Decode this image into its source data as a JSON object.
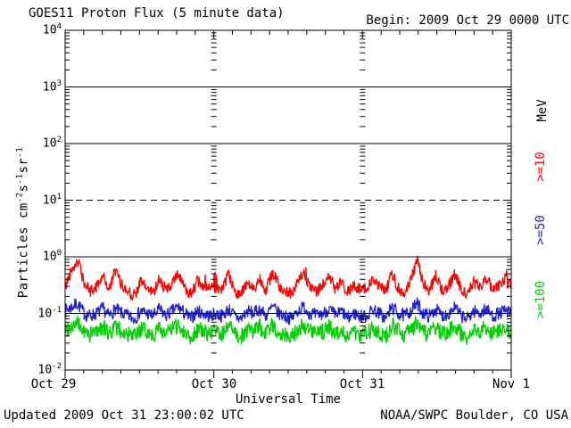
{
  "header": {
    "title": "GOES11 Proton Flux (5 minute data)",
    "begin_label": "Begin: 2009 Oct 29 0000 UTC"
  },
  "footer": {
    "updated": "Updated 2009 Oct 31 23:00:02 UTC",
    "source": "NOAA/SWPC Boulder, CO USA"
  },
  "colors": {
    "p10": "#ff0000",
    "p50": "#2222cc",
    "p100": "#00d000",
    "axis": "#000000",
    "background": "#ffffff"
  },
  "y_axis": {
    "unit_parts": [
      {
        "text": "Particles  cm"
      },
      {
        "sup": "-2"
      },
      {
        "text": "s"
      },
      {
        "sup": "-1"
      },
      {
        "text": "sr"
      },
      {
        "sup": "-1"
      }
    ],
    "ticks": [
      {
        "base": "10",
        "exp": "4"
      },
      {
        "base": "10",
        "exp": "3"
      },
      {
        "base": "10",
        "exp": "2"
      },
      {
        "base": "10",
        "exp": "1"
      },
      {
        "base": "10",
        "exp": "0"
      },
      {
        "base": "10",
        "exp": "-1"
      },
      {
        "base": "10",
        "exp": "-2"
      }
    ]
  },
  "x_axis": {
    "title": "Universal Time",
    "tick_labels": [
      "Oct 29",
      "Oct 30",
      "Oct 31",
      "Nov 1"
    ]
  },
  "right_labels": {
    "unit": "MeV",
    "series": [
      {
        "label": ">=10",
        "color": "#ff0000"
      },
      {
        "label": ">=50",
        "color": "#2222cc"
      },
      {
        "label": ">=100",
        "color": "#00d000"
      }
    ]
  },
  "chart_data": {
    "type": "line",
    "title": "GOES11 Proton Flux (5 minute data)",
    "xlabel": "Universal Time",
    "ylabel": "Particles cm-2 s-1 sr-1",
    "y_scale": "log",
    "ylim": [
      0.01,
      10000
    ],
    "x_start": "2009 Oct 29 0000 UTC",
    "x_end": "2009 Nov 1 0000 UTC",
    "x_days": 3,
    "samples_per_hour": 12,
    "x_tick_labels": [
      "Oct 29",
      "Oct 30",
      "Oct 31",
      "Nov 1"
    ],
    "gridlines": {
      "solid_at": [
        1000,
        100,
        1,
        0.1
      ],
      "dashed_at": [
        10
      ],
      "legend_position": "right"
    },
    "series": [
      {
        "name": ">=10 MeV",
        "color": "#ff0000",
        "noise_decades": 0.11,
        "approx_hourly_flux": [
          0.28,
          0.62,
          0.85,
          0.35,
          0.24,
          0.3,
          0.48,
          0.26,
          0.58,
          0.32,
          0.24,
          0.21,
          0.36,
          0.28,
          0.23,
          0.42,
          0.26,
          0.32,
          0.52,
          0.28,
          0.23,
          0.36,
          0.3,
          0.26,
          0.3,
          0.26,
          0.46,
          0.25,
          0.22,
          0.33,
          0.28,
          0.42,
          0.26,
          0.56,
          0.31,
          0.25,
          0.22,
          0.36,
          0.5,
          0.28,
          0.24,
          0.31,
          0.45,
          0.26,
          0.35,
          0.24,
          0.3,
          0.27,
          0.27,
          0.42,
          0.31,
          0.24,
          0.52,
          0.28,
          0.23,
          0.36,
          0.92,
          0.32,
          0.26,
          0.46,
          0.25,
          0.31,
          0.5,
          0.27,
          0.23,
          0.36,
          0.29,
          0.44,
          0.25,
          0.31,
          0.4,
          0.28
        ]
      },
      {
        "name": ">=50 MeV",
        "color": "#2222cc",
        "noise_decades": 0.12,
        "approx_hourly_flux": [
          0.11,
          0.13,
          0.15,
          0.1,
          0.09,
          0.1,
          0.12,
          0.09,
          0.12,
          0.1,
          0.09,
          0.08,
          0.11,
          0.1,
          0.09,
          0.12,
          0.09,
          0.11,
          0.13,
          0.1,
          0.08,
          0.11,
          0.1,
          0.09,
          0.1,
          0.09,
          0.12,
          0.09,
          0.08,
          0.11,
          0.1,
          0.12,
          0.09,
          0.13,
          0.1,
          0.09,
          0.08,
          0.11,
          0.13,
          0.1,
          0.09,
          0.1,
          0.12,
          0.09,
          0.11,
          0.08,
          0.1,
          0.09,
          0.09,
          0.12,
          0.1,
          0.08,
          0.13,
          0.1,
          0.09,
          0.11,
          0.15,
          0.1,
          0.09,
          0.12,
          0.09,
          0.1,
          0.13,
          0.09,
          0.08,
          0.11,
          0.1,
          0.12,
          0.09,
          0.1,
          0.11,
          0.1
        ]
      },
      {
        "name": ">=100 MeV",
        "color": "#00d000",
        "noise_decades": 0.15,
        "approx_hourly_flux": [
          0.052,
          0.06,
          0.066,
          0.046,
          0.042,
          0.05,
          0.058,
          0.044,
          0.058,
          0.048,
          0.042,
          0.038,
          0.052,
          0.048,
          0.042,
          0.056,
          0.044,
          0.052,
          0.062,
          0.048,
          0.038,
          0.052,
          0.048,
          0.044,
          0.048,
          0.044,
          0.058,
          0.044,
          0.038,
          0.052,
          0.048,
          0.058,
          0.044,
          0.062,
          0.048,
          0.042,
          0.038,
          0.052,
          0.062,
          0.048,
          0.042,
          0.048,
          0.058,
          0.044,
          0.052,
          0.038,
          0.048,
          0.044,
          0.044,
          0.058,
          0.048,
          0.038,
          0.062,
          0.048,
          0.042,
          0.052,
          0.066,
          0.048,
          0.042,
          0.058,
          0.044,
          0.048,
          0.062,
          0.044,
          0.038,
          0.052,
          0.048,
          0.058,
          0.044,
          0.048,
          0.052,
          0.048
        ]
      }
    ]
  }
}
